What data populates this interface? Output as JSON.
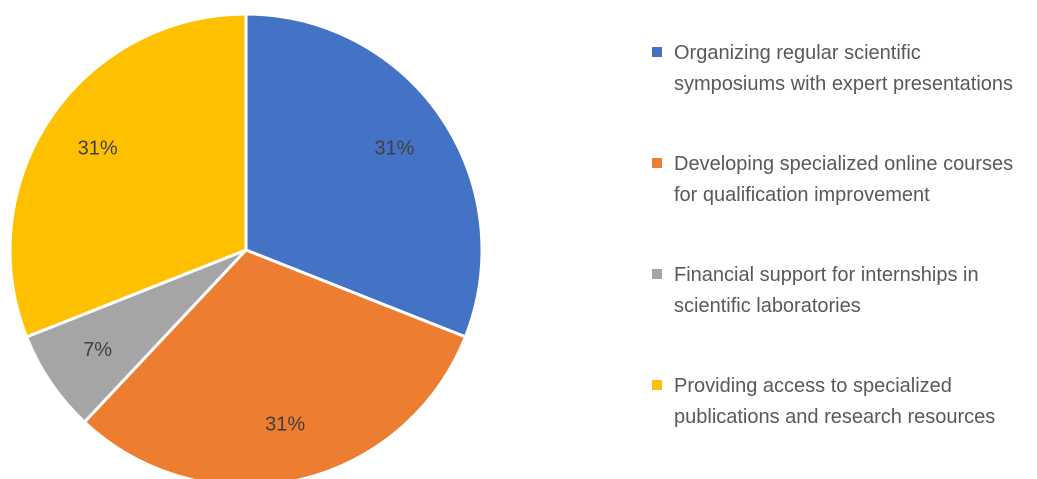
{
  "chart_data": {
    "type": "pie",
    "categories": [
      "Organizing regular scientific symposiums with expert presentations",
      "Developing specialized online courses for qualification improvement",
      "Financial support for internships in scientific laboratories",
      "Providing access to specialized publications and research resources"
    ],
    "values": [
      31,
      31,
      7,
      31
    ],
    "value_labels": [
      "31%",
      "31%",
      "7%",
      "31%"
    ],
    "colors": [
      "#4472c4",
      "#ed7d31",
      "#a5a5a5",
      "#ffc000"
    ]
  }
}
